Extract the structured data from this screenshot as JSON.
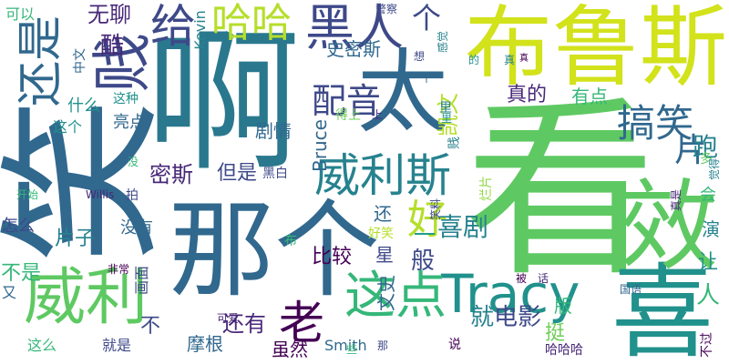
{
  "words": [
    {
      "text": "看",
      "color": "#5ec962"
    },
    {
      "text": "笑",
      "color": "#31688e"
    },
    {
      "text": "啊",
      "color": "#2a788e"
    },
    {
      "text": "太",
      "color": "#31688e"
    },
    {
      "text": "布鲁斯",
      "color": "#d2e21b"
    },
    {
      "text": "那个",
      "color": "#31688e"
    },
    {
      "text": "喜",
      "color": "#21918c"
    },
    {
      "text": "效",
      "color": "#5ec962"
    },
    {
      "text": "威利",
      "color": "#5ec962"
    },
    {
      "text": "Tracy",
      "color": "#21918c"
    },
    {
      "text": "还是",
      "color": "#31688e"
    },
    {
      "text": "贱",
      "color": "#3e4989"
    },
    {
      "text": "黑人",
      "color": "#3e4989"
    },
    {
      "text": "哈哈",
      "color": "#b5de2b"
    },
    {
      "text": "给",
      "color": "#3e4989"
    },
    {
      "text": "搞笑",
      "color": "#31688e"
    },
    {
      "text": "威利斯",
      "color": "#26828e"
    },
    {
      "text": "这点",
      "color": "#35b779"
    },
    {
      "text": "老",
      "color": "#440154"
    },
    {
      "text": "配音",
      "color": "#3e4989"
    },
    {
      "text": "好",
      "color": "#b5de2b"
    },
    {
      "text": "片",
      "color": "#31688e"
    },
    {
      "text": "跑",
      "color": "#26828e"
    },
    {
      "text": "喜剧",
      "color": "#26828e"
    },
    {
      "text": "就",
      "color": "#26828e"
    },
    {
      "text": "电影",
      "color": "#3e4989"
    },
    {
      "text": "个",
      "color": "#3e4989"
    },
    {
      "text": "酷",
      "color": "#482878"
    },
    {
      "text": "无聊",
      "color": "#482878"
    },
    {
      "text": "史密斯",
      "color": "#31688e"
    },
    {
      "text": "凯文",
      "color": "#b5de2b"
    },
    {
      "text": "真的",
      "color": "#482878"
    },
    {
      "text": "有点",
      "color": "#35b779"
    },
    {
      "text": "剧情",
      "color": "#31688e"
    },
    {
      "text": "密斯",
      "color": "#482878"
    },
    {
      "text": "但是",
      "color": "#3e4989"
    },
    {
      "text": "还",
      "color": "#31688e"
    },
    {
      "text": "片子",
      "color": "#26828e"
    },
    {
      "text": "比较",
      "color": "#440154"
    },
    {
      "text": "不是",
      "color": "#35b779"
    },
    {
      "text": "还有",
      "color": "#482878"
    },
    {
      "text": "摩根",
      "color": "#31688e"
    },
    {
      "text": "人",
      "color": "#35b779"
    },
    {
      "text": "让",
      "color": "#21918c"
    },
    {
      "text": "版",
      "color": "#35b779"
    },
    {
      "text": "挺",
      "color": "#6ece58"
    },
    {
      "text": "演",
      "color": "#26828e"
    },
    {
      "text": "会",
      "color": "#35b779"
    },
    {
      "text": "般",
      "color": "#3e4989"
    },
    {
      "text": "星",
      "color": "#3e4989"
    },
    {
      "text": "文史",
      "color": "#31688e"
    },
    {
      "text": "一",
      "color": "#1f9e89"
    },
    {
      "text": "虽然",
      "color": "#440154"
    },
    {
      "text": "Smith",
      "color": "#31688e"
    },
    {
      "text": "Bruce",
      "color": "#31688e"
    },
    {
      "text": "Kevin",
      "color": "#26828e"
    },
    {
      "text": "Willis",
      "color": "#482878"
    },
    {
      "text": "什么",
      "color": "#21918c"
    },
    {
      "text": "亮点",
      "color": "#31688e"
    },
    {
      "text": "这个",
      "color": "#21918c"
    },
    {
      "text": "这种",
      "color": "#21918c"
    },
    {
      "text": "可以",
      "color": "#35b779"
    },
    {
      "text": "中文",
      "color": "#31688e"
    },
    {
      "text": "没有",
      "color": "#31688e"
    },
    {
      "text": "怎么",
      "color": "#3e4989"
    },
    {
      "text": "又",
      "color": "#31688e"
    },
    {
      "text": "非常",
      "color": "#440154"
    },
    {
      "text": "画面",
      "color": "#3e4989"
    },
    {
      "text": "这么",
      "color": "#35b779"
    },
    {
      "text": "就是",
      "color": "#3e4989"
    },
    {
      "text": "可爱",
      "color": "#482878"
    },
    {
      "text": "好笑",
      "color": "#b5de2b"
    },
    {
      "text": "多",
      "color": "#5ec962"
    },
    {
      "text": "烂片",
      "color": "#90d743"
    },
    {
      "text": "说",
      "color": "#440154"
    },
    {
      "text": "哈哈哈",
      "color": "#482878"
    },
    {
      "text": "不过",
      "color": "#440154"
    },
    {
      "text": "被",
      "color": "#440154"
    },
    {
      "text": "话",
      "color": "#482878"
    },
    {
      "text": "国语",
      "color": "#31688e"
    },
    {
      "text": "警察",
      "color": "#3e4989"
    },
    {
      "text": "想",
      "color": "#3e4989"
    },
    {
      "text": "感觉",
      "color": "#26828e"
    },
    {
      "text": "黑白",
      "color": "#3e4989"
    },
    {
      "text": "里",
      "color": "#26828e"
    },
    {
      "text": "拍",
      "color": "#3e4989"
    },
    {
      "text": "得上",
      "color": "#6ece58"
    },
    {
      "text": "真是",
      "color": "#482878"
    },
    {
      "text": "觉得",
      "color": "#26828e"
    },
    {
      "text": "笑料",
      "color": "#3e4989"
    },
    {
      "text": "开始",
      "color": "#35b779"
    },
    {
      "text": "没",
      "color": "#35b779"
    },
    {
      "text": "真",
      "color": "#26828e"
    },
    {
      "text": "那",
      "color": "#3e4989"
    },
    {
      "text": "的",
      "color": "#21918c"
    },
    {
      "text": "个",
      "color": "#31688e"
    },
    {
      "text": "布",
      "color": "#35b779"
    },
    {
      "text": "不",
      "color": "#3e4989"
    },
    {
      "text": "上",
      "color": "#482878"
    },
    {
      "text": "贱",
      "color": "#26828e"
    },
    {
      "text": "里",
      "color": "#21918c"
    },
    {
      "text": "真",
      "color": "#440154"
    },
    {
      "text": "些",
      "color": "#35b779"
    }
  ]
}
